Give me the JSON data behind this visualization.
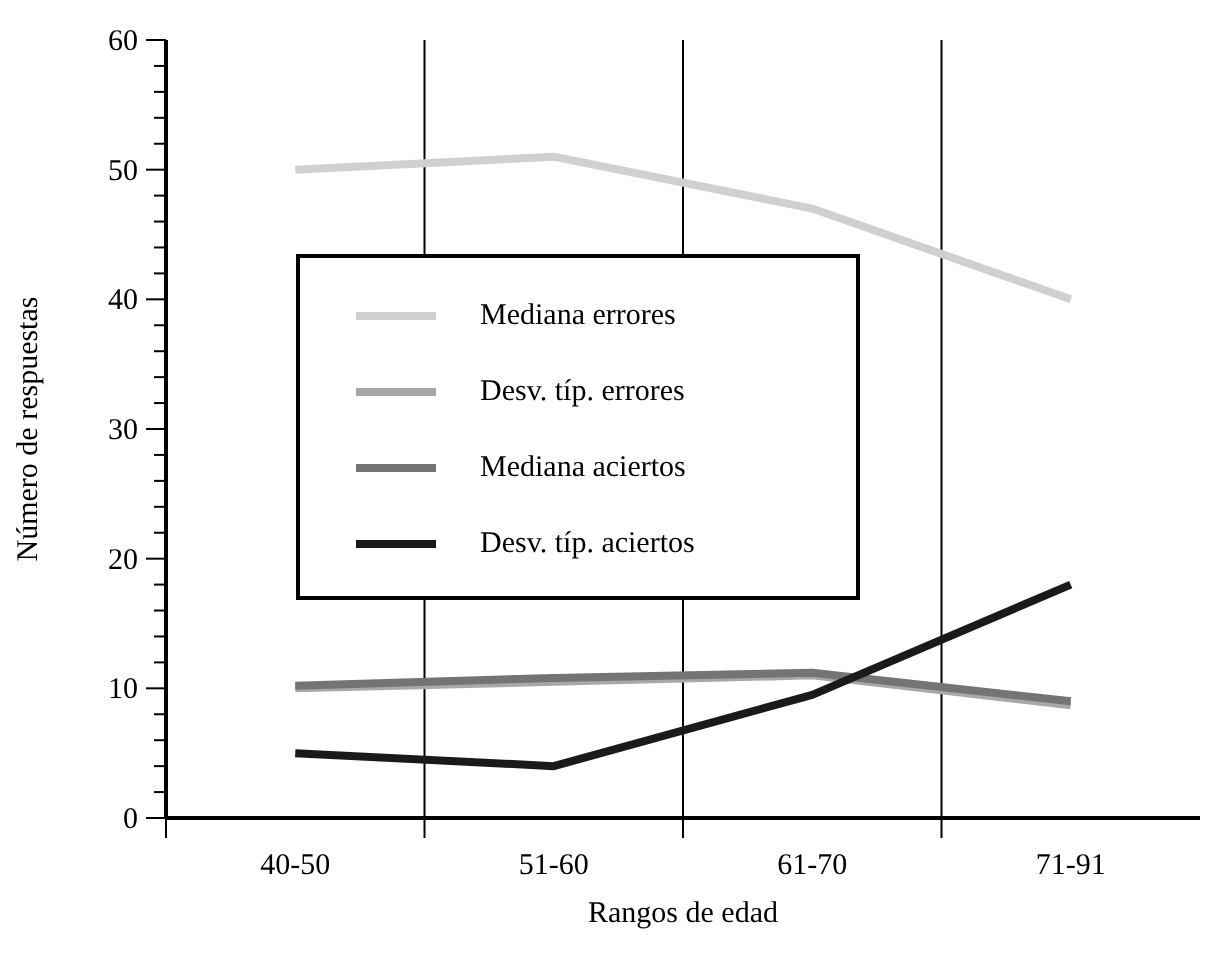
{
  "chart_data": {
    "type": "line",
    "xlabel": "Rangos de edad",
    "ylabel": "Número de respuestas",
    "categories": [
      "40-50",
      "51-60",
      "61-70",
      "71-91"
    ],
    "series": [
      {
        "name": "Mediana errores",
        "color": "#d0d0d0",
        "values": [
          50,
          51,
          47,
          40
        ]
      },
      {
        "name": "Desv. típ. errores",
        "color": "#a8a8a8",
        "values": [
          10,
          10.5,
          11,
          8.7
        ]
      },
      {
        "name": "Mediana aciertos",
        "color": "#747474",
        "values": [
          10.2,
          10.8,
          11.2,
          9
        ]
      },
      {
        "name": "Desv. típ. aciertos",
        "color": "#1a1a1a",
        "values": [
          5,
          4,
          9.5,
          18
        ]
      }
    ],
    "ylim": [
      0,
      60
    ],
    "yticks": [
      0,
      {
        "value": 2,
        "label": null
      },
      {
        "value": 4,
        "label": null
      },
      {
        "value": 6,
        "label": null
      },
      {
        "value": 8,
        "label": null
      },
      10,
      {
        "value": 12,
        "label": null
      },
      {
        "value": 14,
        "label": null
      },
      {
        "value": 16,
        "label": null
      },
      {
        "value": 18,
        "label": null
      },
      20,
      {
        "value": 22,
        "label": null
      },
      {
        "value": 24,
        "label": null
      },
      {
        "value": 26,
        "label": null
      },
      {
        "value": 28,
        "label": null
      },
      30,
      {
        "value": 32,
        "label": null
      },
      {
        "value": 34,
        "label": null
      },
      {
        "value": 36,
        "label": null
      },
      {
        "value": 38,
        "label": null
      },
      40,
      {
        "value": 42,
        "label": null
      },
      {
        "value": 44,
        "label": null
      },
      {
        "value": 46,
        "label": null
      },
      {
        "value": 48,
        "label": null
      },
      50,
      {
        "value": 52,
        "label": null
      },
      {
        "value": 54,
        "label": null
      },
      {
        "value": 56,
        "label": null
      },
      {
        "value": 58,
        "label": null
      },
      60
    ],
    "grid": "x",
    "legend": "center",
    "marker": "none",
    "line_style": "solid"
  }
}
